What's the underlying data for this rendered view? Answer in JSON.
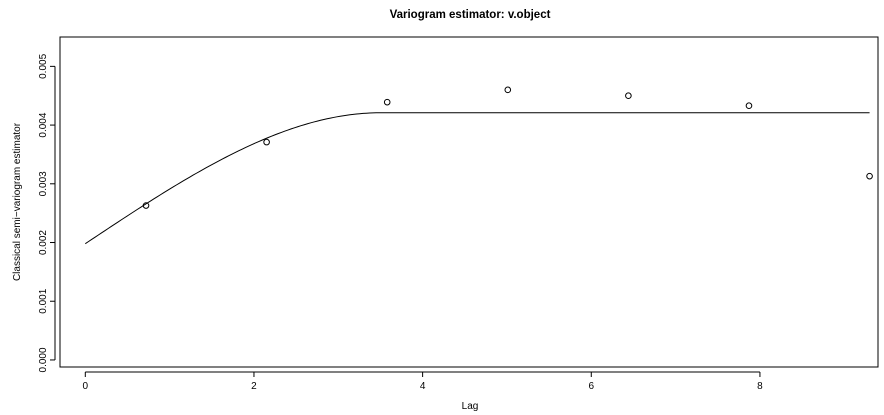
{
  "chart_data": {
    "type": "scatter",
    "title": "Variogram estimator: v.object",
    "xlabel": "Lag",
    "ylabel": "Classical semi−variogram estimator",
    "xlim": [
      -0.3,
      9.4
    ],
    "ylim": [
      -0.00012,
      0.0055
    ],
    "xticks": [
      0,
      2,
      4,
      6,
      8
    ],
    "xtick_labels": [
      "0",
      "2",
      "4",
      "6",
      "8"
    ],
    "yticks": [
      0,
      0.001,
      0.002,
      0.003,
      0.004,
      0.005
    ],
    "ytick_labels": [
      "0.000",
      "0.001",
      "0.002",
      "0.003",
      "0.004",
      "0.005"
    ],
    "grid": false,
    "points": {
      "x": [
        0.72,
        2.15,
        3.58,
        5.01,
        6.44,
        7.87,
        9.3
      ],
      "y": [
        0.00263,
        0.00371,
        0.00439,
        0.0046,
        0.0045,
        0.00433,
        0.00313
      ]
    },
    "model_curve": {
      "type": "spherical",
      "nugget": 0.00198,
      "sill": 0.00421,
      "range": 3.5,
      "x_max": 9.3
    }
  }
}
